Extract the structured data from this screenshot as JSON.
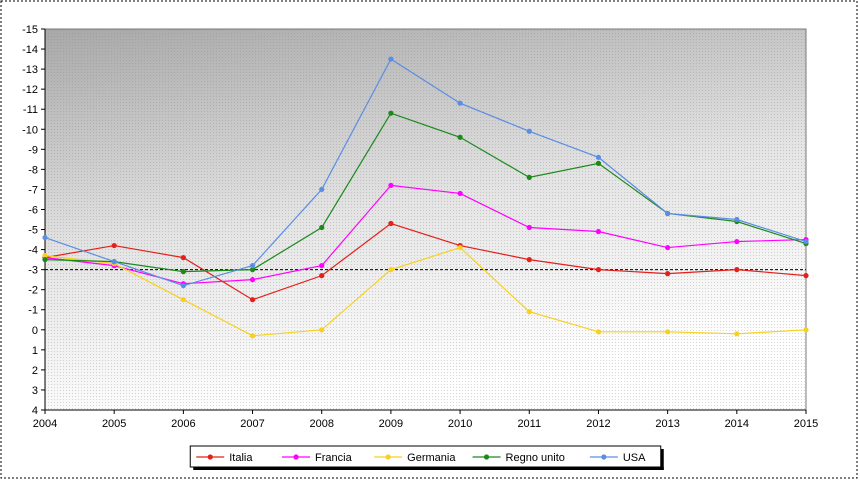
{
  "chart_data": {
    "type": "line",
    "categories": [
      "2004",
      "2005",
      "2006",
      "2007",
      "2008",
      "2009",
      "2010",
      "2011",
      "2012",
      "2013",
      "2014",
      "2015"
    ],
    "series": [
      {
        "name": "Italia",
        "color": "#e3201b",
        "values": [
          -3.6,
          -4.2,
          -3.6,
          -1.5,
          -2.7,
          -5.3,
          -4.2,
          -3.5,
          -3.0,
          -2.8,
          -3.0,
          -2.7
        ]
      },
      {
        "name": "Francia",
        "color": "#ff00ff",
        "values": [
          -3.6,
          -3.2,
          -2.3,
          -2.5,
          -3.2,
          -7.2,
          -6.8,
          -5.1,
          -4.9,
          -4.1,
          -4.4,
          -4.5
        ]
      },
      {
        "name": "Germania",
        "color": "#f7d11e",
        "values": [
          -3.7,
          -3.3,
          -1.5,
          0.3,
          0.0,
          -3.0,
          -4.1,
          -0.9,
          0.1,
          0.1,
          0.2,
          0.0
        ]
      },
      {
        "name": "Regno unito",
        "color": "#1b8a1b",
        "values": [
          -3.5,
          -3.4,
          -2.9,
          -3.0,
          -5.1,
          -10.8,
          -9.6,
          -7.6,
          -8.3,
          -5.8,
          -5.4,
          -4.3
        ]
      },
      {
        "name": "USA",
        "color": "#5a8de6",
        "values": [
          -4.6,
          -3.4,
          -2.2,
          -3.2,
          -7.0,
          -13.5,
          -11.3,
          -9.9,
          -8.6,
          -5.8,
          -5.5,
          -4.4
        ]
      }
    ],
    "ylim": [
      4,
      -15
    ],
    "yticks": [
      -15,
      -14,
      -13,
      -12,
      -11,
      -10,
      -9,
      -8,
      -7,
      -6,
      -5,
      -4,
      -3,
      -2,
      -1,
      0,
      1,
      2,
      3,
      4
    ],
    "reference_line": -3,
    "legend": "bottom"
  }
}
